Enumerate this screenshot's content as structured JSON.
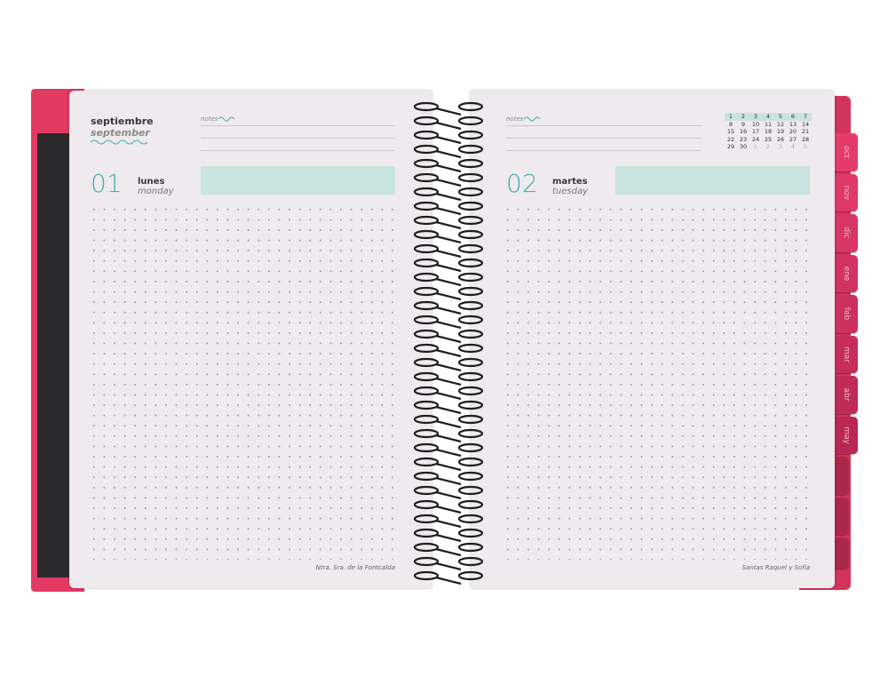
{
  "left_page": {
    "month_es": "septiembre",
    "month_en": "september",
    "notes_label": "notes",
    "day_number": "01",
    "weekday_es": "lunes",
    "weekday_en": "monday",
    "saint": "Ntra. Sra. de la Fontcalda"
  },
  "right_page": {
    "notes_label": "notes",
    "day_number": "02",
    "weekday_es": "martes",
    "weekday_en": "tuesday",
    "saint": "Santas Raquel y Sofía",
    "mini_calendar": [
      [
        "1",
        "2",
        "3",
        "4",
        "5",
        "6",
        "7"
      ],
      [
        "8",
        "9",
        "10",
        "11",
        "12",
        "13",
        "14"
      ],
      [
        "15",
        "16",
        "17",
        "18",
        "19",
        "20",
        "21"
      ],
      [
        "22",
        "23",
        "24",
        "25",
        "26",
        "27",
        "28"
      ],
      [
        "29",
        "30",
        "1",
        "2",
        "3",
        "4",
        "5"
      ]
    ]
  },
  "tabs": [
    "oct",
    "nov",
    "dic",
    "ene",
    "feb",
    "mar",
    "abr",
    "may"
  ]
}
